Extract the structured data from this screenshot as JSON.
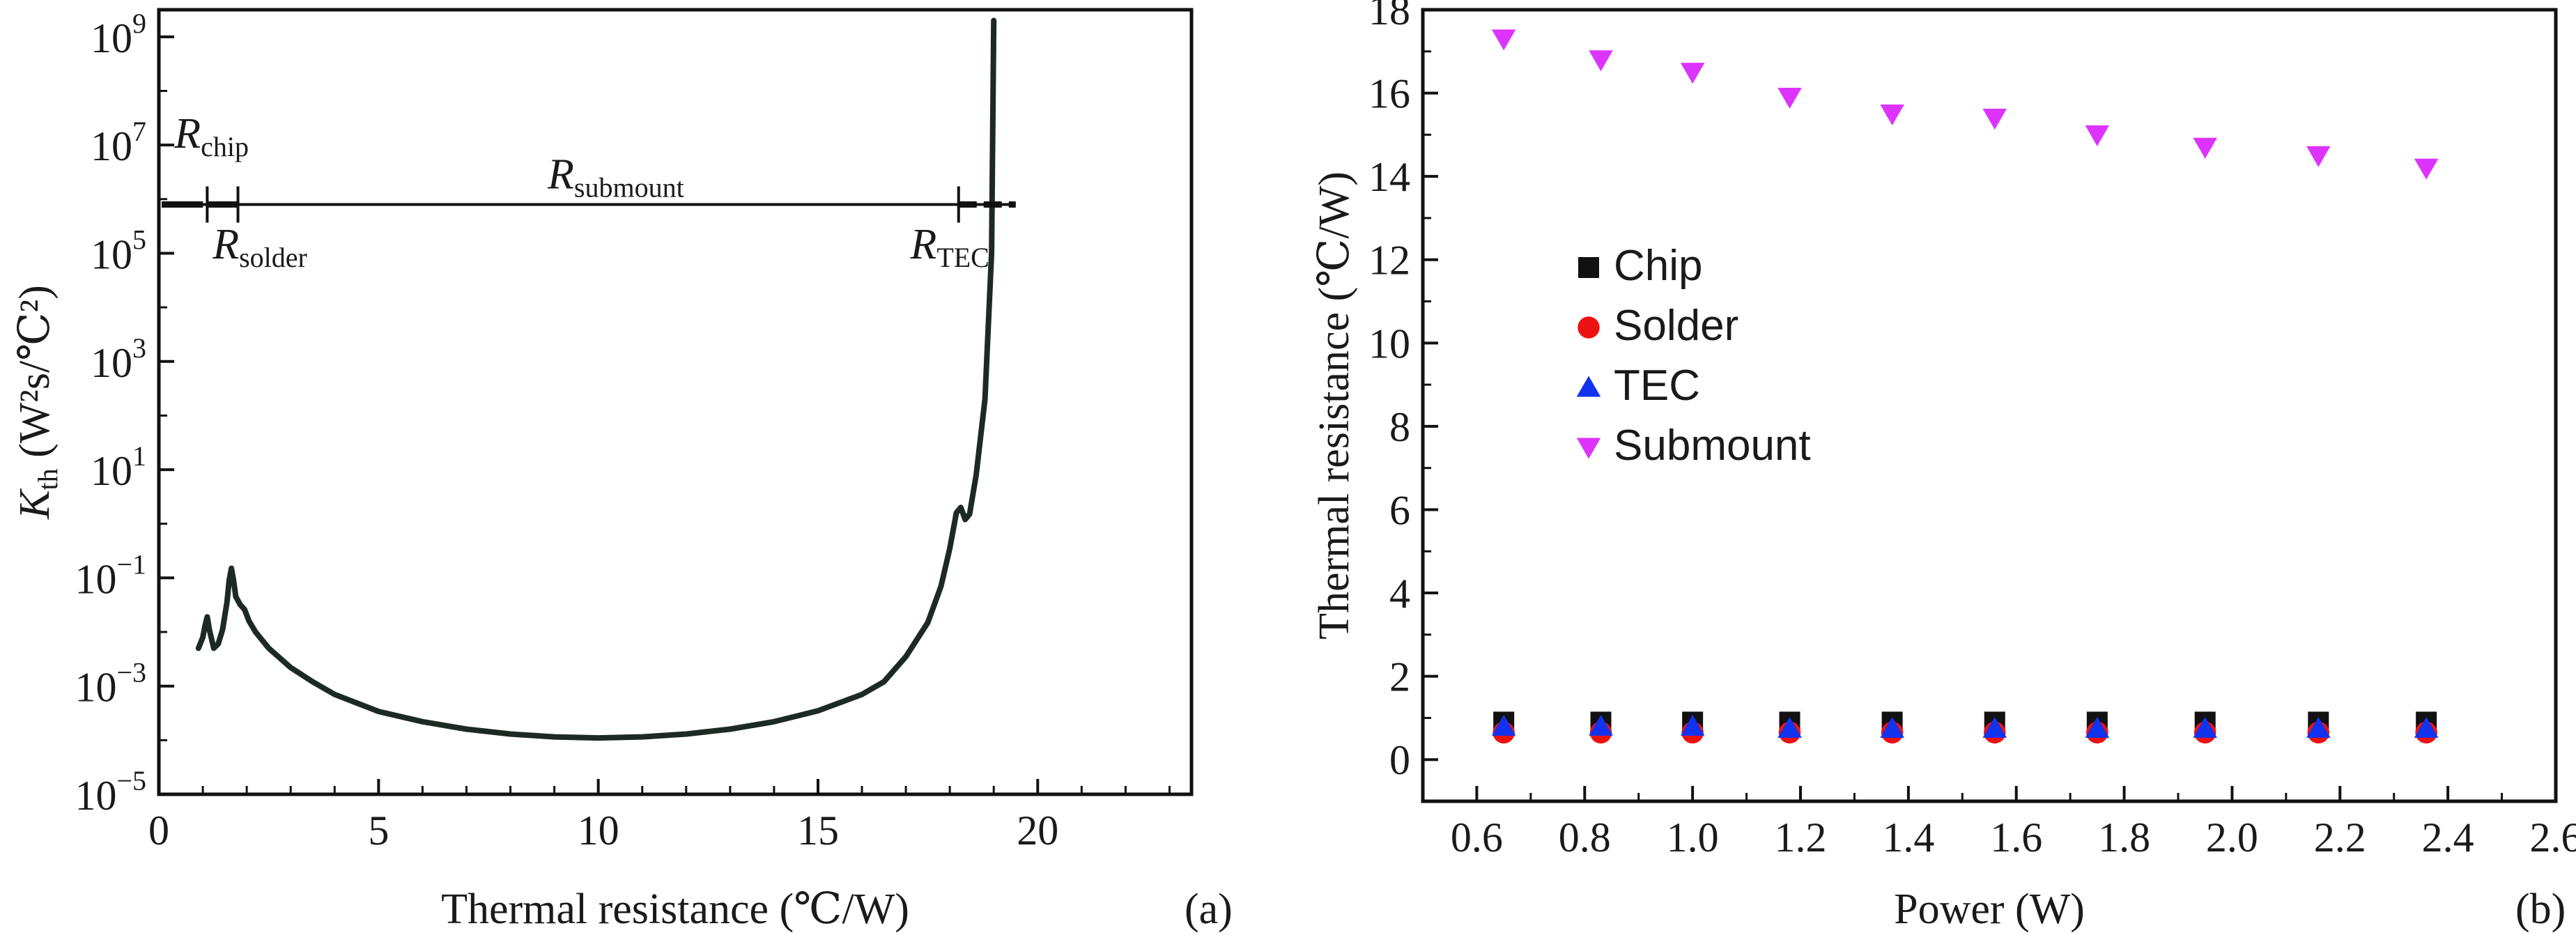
{
  "chart_data": [
    {
      "panel": "(a)",
      "type": "line",
      "xlabel": "Thermal resistance (℃/W)",
      "ylabel_main": "K",
      "ylabel_sub": "th",
      "ylabel_unit": " (W²s/℃²)",
      "xlim": [
        0,
        23.5
      ],
      "ylim_exp": [
        -5,
        9.5
      ],
      "yscale": "log",
      "x_ticks": [
        0,
        5,
        10,
        15,
        20
      ],
      "y_ticks_exp": [
        -5,
        -3,
        -1,
        1,
        3,
        5,
        7,
        9
      ],
      "y_tick_base": "10",
      "series": [
        {
          "x": [
            0.9,
            1.0,
            1.05,
            1.1,
            1.15,
            1.25,
            1.35,
            1.45,
            1.55,
            1.6,
            1.65,
            1.7,
            1.75,
            1.85,
            1.95,
            2.05,
            2.2,
            2.5,
            3.0,
            3.5,
            4.0,
            5.0,
            6.0,
            7.0,
            8.0,
            9.0,
            10.0,
            11.0,
            12.0,
            13.0,
            14.0,
            15.0,
            16.0,
            16.5,
            17.0,
            17.5,
            17.8,
            18.0,
            18.15,
            18.25,
            18.35,
            18.45,
            18.6,
            18.8,
            18.95,
            19.0
          ],
          "y": [
            0.005,
            0.008,
            0.013,
            0.019,
            0.011,
            0.005,
            0.006,
            0.011,
            0.035,
            0.09,
            0.15,
            0.09,
            0.045,
            0.032,
            0.026,
            0.016,
            0.01,
            0.005,
            0.0022,
            0.0012,
            0.0007,
            0.00034,
            0.00022,
            0.00016,
            0.00013,
            0.000115,
            0.00011,
            0.000115,
            0.00013,
            0.00016,
            0.00022,
            0.00035,
            0.0007,
            0.0012,
            0.0035,
            0.015,
            0.07,
            0.35,
            1.6,
            2.0,
            1.2,
            1.5,
            8,
            200,
            100000,
            2000000000
          ]
        }
      ],
      "annotations": [
        {
          "main": "R",
          "sub": "chip"
        },
        {
          "main": "R",
          "sub": "solder"
        },
        {
          "main": "R",
          "sub": "submount"
        },
        {
          "main": "R",
          "sub": "TEC"
        }
      ],
      "segment_boundaries_x": [
        1.1,
        1.8,
        18.2,
        19.0
      ],
      "segment_level_exp": 5.9
    },
    {
      "panel": "(b)",
      "type": "scatter",
      "xlabel": "Power (W)",
      "ylabel": "Thermal resistance (℃/W)",
      "xlim": [
        0.5,
        2.6
      ],
      "ylim": [
        -1,
        18
      ],
      "x_ticks": [
        "0.6",
        "0.8",
        "1.0",
        "1.2",
        "1.4",
        "1.6",
        "1.8",
        "2.0",
        "2.2",
        "2.4",
        "2.6"
      ],
      "y_ticks": [
        "0",
        "2",
        "4",
        "6",
        "8",
        "10",
        "12",
        "14",
        "16",
        "18"
      ],
      "x": [
        0.65,
        0.83,
        1.0,
        1.18,
        1.37,
        1.56,
        1.75,
        1.95,
        2.16,
        2.36
      ],
      "series": [
        {
          "name": "Chip",
          "marker": "square",
          "color": "#111111",
          "values": [
            0.9,
            0.9,
            0.9,
            0.9,
            0.9,
            0.9,
            0.9,
            0.9,
            0.9,
            0.9
          ]
        },
        {
          "name": "Solder",
          "marker": "circle",
          "color": "#ee1111",
          "values": [
            0.65,
            0.65,
            0.65,
            0.65,
            0.65,
            0.65,
            0.65,
            0.65,
            0.65,
            0.65
          ]
        },
        {
          "name": "TEC",
          "marker": "triangle-up",
          "color": "#1133ee",
          "values": [
            0.8,
            0.8,
            0.8,
            0.75,
            0.75,
            0.75,
            0.75,
            0.75,
            0.75,
            0.75
          ]
        },
        {
          "name": "Submount",
          "marker": "triangle-down",
          "color": "#dd33ff",
          "values": [
            17.3,
            16.8,
            16.5,
            15.9,
            15.5,
            15.4,
            15.0,
            14.7,
            14.5,
            14.2
          ]
        }
      ],
      "legend_position": "center-left"
    }
  ]
}
